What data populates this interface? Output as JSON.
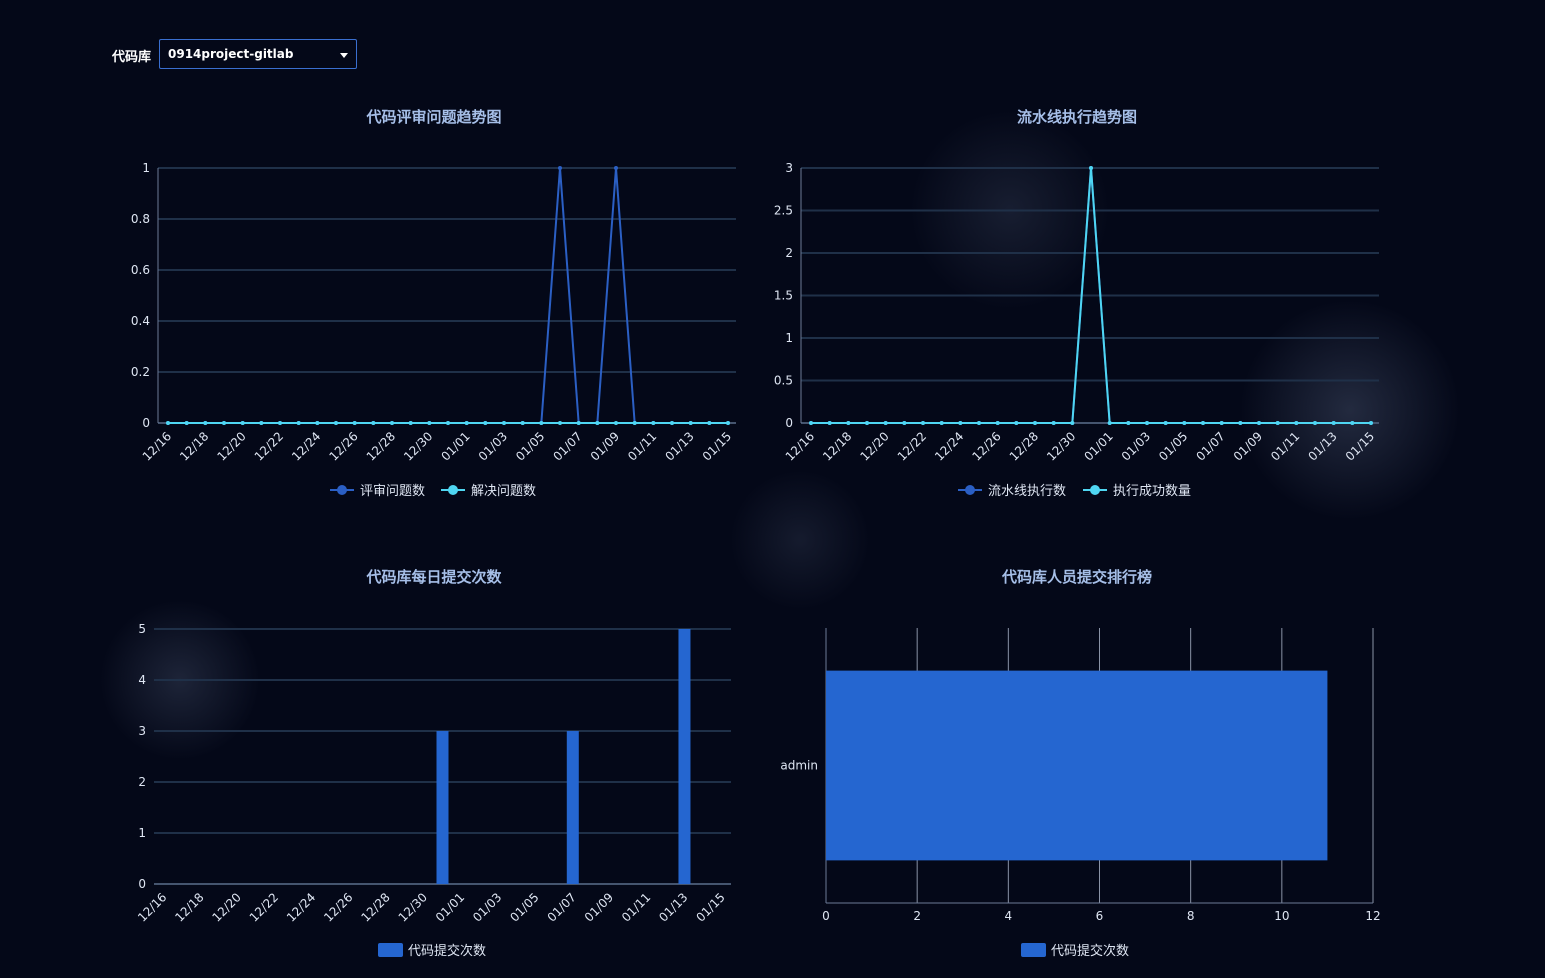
{
  "filter": {
    "label": "代码库",
    "selected": "0914project-gitlab"
  },
  "colors": {
    "series_dark": "#2b5fc4",
    "series_light": "#4fd6f2",
    "bar": "#2566d0",
    "grid": "#1f3048",
    "axis": "#6b7a96"
  },
  "charts": {
    "review": {
      "title": "代码评审问题趋势图",
      "legend": [
        "评审问题数",
        "解决问题数"
      ]
    },
    "pipeline": {
      "title": "流水线执行趋势图",
      "legend": [
        "流水线执行数",
        "执行成功数量"
      ]
    },
    "daily": {
      "title": "代码库每日提交次数",
      "legend": [
        "代码提交次数"
      ]
    },
    "ranking": {
      "title": "代码库人员提交排行榜",
      "legend": [
        "代码提交次数"
      ]
    }
  },
  "chart_data": [
    {
      "type": "line",
      "title": "代码评审问题趋势图",
      "x": [
        "12/16",
        "12/17",
        "12/18",
        "12/19",
        "12/20",
        "12/21",
        "12/22",
        "12/23",
        "12/24",
        "12/25",
        "12/26",
        "12/27",
        "12/28",
        "12/29",
        "12/30",
        "12/31",
        "01/01",
        "01/02",
        "01/03",
        "01/04",
        "01/05",
        "01/06",
        "01/07",
        "01/08",
        "01/09",
        "01/10",
        "01/11",
        "01/12",
        "01/13",
        "01/14",
        "01/15"
      ],
      "x_tick_labels": [
        "12/16",
        "12/18",
        "12/20",
        "12/22",
        "12/24",
        "12/26",
        "12/28",
        "12/30",
        "01/01",
        "01/03",
        "01/05",
        "01/07",
        "01/09",
        "01/11",
        "01/13",
        "01/15"
      ],
      "y_ticks": [
        "0",
        "0.2",
        "0.4",
        "0.6",
        "0.8",
        "1"
      ],
      "ylim": [
        0,
        1
      ],
      "series": [
        {
          "name": "评审问题数",
          "values": [
            0,
            0,
            0,
            0,
            0,
            0,
            0,
            0,
            0,
            0,
            0,
            0,
            0,
            0,
            0,
            0,
            0,
            0,
            0,
            0,
            0,
            1,
            0,
            0,
            1,
            0,
            0,
            0,
            0,
            0,
            0
          ]
        },
        {
          "name": "解决问题数",
          "values": [
            0,
            0,
            0,
            0,
            0,
            0,
            0,
            0,
            0,
            0,
            0,
            0,
            0,
            0,
            0,
            0,
            0,
            0,
            0,
            0,
            0,
            0,
            0,
            0,
            0,
            0,
            0,
            0,
            0,
            0,
            0
          ]
        }
      ],
      "grid": true,
      "legend_position": "bottom"
    },
    {
      "type": "line",
      "title": "流水线执行趋势图",
      "x": [
        "12/16",
        "12/17",
        "12/18",
        "12/19",
        "12/20",
        "12/21",
        "12/22",
        "12/23",
        "12/24",
        "12/25",
        "12/26",
        "12/27",
        "12/28",
        "12/29",
        "12/30",
        "12/31",
        "01/01",
        "01/02",
        "01/03",
        "01/04",
        "01/05",
        "01/06",
        "01/07",
        "01/08",
        "01/09",
        "01/10",
        "01/11",
        "01/12",
        "01/13",
        "01/14",
        "01/15"
      ],
      "x_tick_labels": [
        "12/16",
        "12/18",
        "12/20",
        "12/22",
        "12/24",
        "12/26",
        "12/28",
        "12/30",
        "01/01",
        "01/03",
        "01/05",
        "01/07",
        "01/09",
        "01/11",
        "01/13",
        "01/15"
      ],
      "y_ticks": [
        "0",
        "0.5",
        "1",
        "1.5",
        "2",
        "2.5",
        "3"
      ],
      "ylim": [
        0,
        3
      ],
      "series": [
        {
          "name": "流水线执行数",
          "values": [
            0,
            0,
            0,
            0,
            0,
            0,
            0,
            0,
            0,
            0,
            0,
            0,
            0,
            0,
            0,
            3,
            0,
            0,
            0,
            0,
            0,
            0,
            0,
            0,
            0,
            0,
            0,
            0,
            0,
            0,
            0
          ]
        },
        {
          "name": "执行成功数量",
          "values": [
            0,
            0,
            0,
            0,
            0,
            0,
            0,
            0,
            0,
            0,
            0,
            0,
            0,
            0,
            0,
            3,
            0,
            0,
            0,
            0,
            0,
            0,
            0,
            0,
            0,
            0,
            0,
            0,
            0,
            0,
            0
          ]
        }
      ],
      "grid": true,
      "legend_position": "bottom"
    },
    {
      "type": "bar",
      "title": "代码库每日提交次数",
      "categories": [
        "12/16",
        "12/17",
        "12/18",
        "12/19",
        "12/20",
        "12/21",
        "12/22",
        "12/23",
        "12/24",
        "12/25",
        "12/26",
        "12/27",
        "12/28",
        "12/29",
        "12/30",
        "12/31",
        "01/01",
        "01/02",
        "01/03",
        "01/04",
        "01/05",
        "01/06",
        "01/07",
        "01/08",
        "01/09",
        "01/10",
        "01/11",
        "01/12",
        "01/13",
        "01/14",
        "01/15"
      ],
      "x_tick_labels": [
        "12/16",
        "12/18",
        "12/20",
        "12/22",
        "12/24",
        "12/26",
        "12/28",
        "12/30",
        "01/01",
        "01/03",
        "01/05",
        "01/07",
        "01/09",
        "01/11",
        "01/13",
        "01/15"
      ],
      "y_ticks": [
        "0",
        "1",
        "2",
        "3",
        "4",
        "5"
      ],
      "ylim": [
        0,
        5
      ],
      "series": [
        {
          "name": "代码提交次数",
          "values": [
            0,
            0,
            0,
            0,
            0,
            0,
            0,
            0,
            0,
            0,
            0,
            0,
            0,
            0,
            0,
            3,
            0,
            0,
            0,
            0,
            0,
            0,
            3,
            0,
            0,
            0,
            0,
            0,
            5,
            0,
            0
          ]
        }
      ],
      "grid": true,
      "legend_position": "bottom"
    },
    {
      "type": "bar",
      "orientation": "horizontal",
      "title": "代码库人员提交排行榜",
      "categories": [
        "admin"
      ],
      "x_ticks": [
        "0",
        "2",
        "4",
        "6",
        "8",
        "10",
        "12"
      ],
      "xlim": [
        0,
        12
      ],
      "series": [
        {
          "name": "代码提交次数",
          "values": [
            11
          ]
        }
      ],
      "grid": true,
      "legend_position": "bottom"
    }
  ]
}
